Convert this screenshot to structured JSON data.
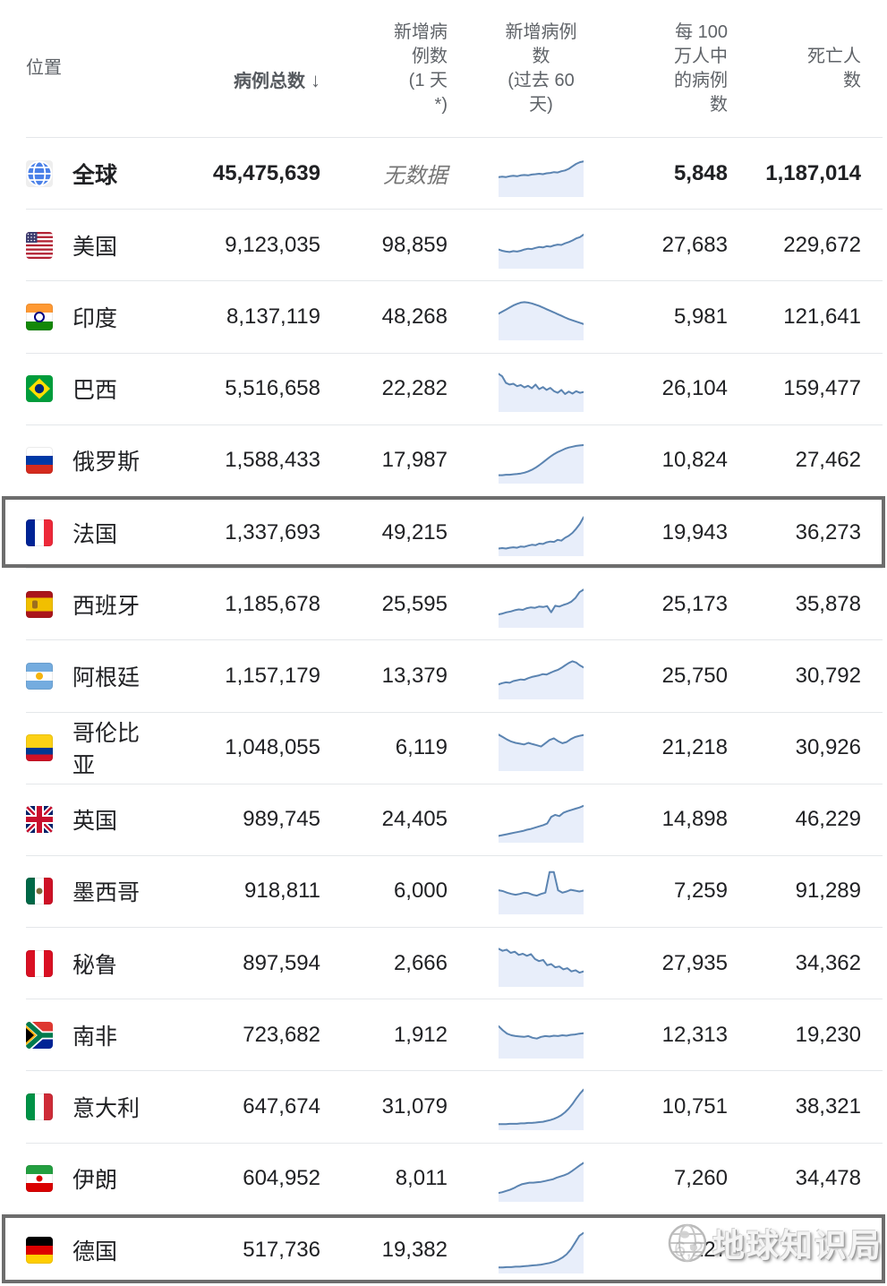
{
  "header": {
    "location": "位置",
    "total_cases": "病例总数",
    "sort_arrow": "↓",
    "new_cases_lines": [
      "新增病",
      "例数",
      "(1 天",
      "*)"
    ],
    "new_cases_60d_lines": [
      "新增病例数",
      "(过去 60",
      "天)"
    ],
    "per_million_lines": [
      "每 100",
      "万人中",
      "的病例",
      "数"
    ],
    "deaths_lines": [
      "死亡人",
      "数"
    ]
  },
  "colors": {
    "body_text": "#202124",
    "header_text": "#5f6368",
    "muted_text": "#757575",
    "divider": "#e4e7ea",
    "spark_line": "#5b84b1",
    "spark_fill": "#e8eefa",
    "highlight_border": "#6d6d6d",
    "globe_blue": "#4a80e8"
  },
  "watermark": {
    "text": "地球知识局"
  },
  "rows": [
    {
      "name": "全球",
      "flag": {
        "code": "globe",
        "type": "globe"
      },
      "total": "45,475,639",
      "new_cases": "无数据",
      "no_data": true,
      "per_million": "5,848",
      "deaths": "1,187,014",
      "bold": true,
      "highlighted": false,
      "spark": [
        0.42,
        0.43,
        0.42,
        0.44,
        0.45,
        0.44,
        0.46,
        0.47,
        0.46,
        0.48,
        0.49,
        0.5,
        0.49,
        0.51,
        0.52,
        0.54,
        0.53,
        0.56,
        0.58,
        0.62,
        0.68,
        0.74,
        0.78,
        0.8
      ]
    },
    {
      "name": "美国",
      "flag": {
        "code": "us",
        "type": "us",
        "colors": [
          "#b22234",
          "#ffffff",
          "#3c3b6e"
        ]
      },
      "total": "9,123,035",
      "new_cases": "98,859",
      "per_million": "27,683",
      "deaths": "229,672",
      "bold": false,
      "highlighted": false,
      "spark": [
        0.4,
        0.37,
        0.35,
        0.34,
        0.36,
        0.35,
        0.37,
        0.4,
        0.42,
        0.41,
        0.44,
        0.46,
        0.45,
        0.48,
        0.47,
        0.5,
        0.52,
        0.51,
        0.55,
        0.58,
        0.62,
        0.67,
        0.7,
        0.76
      ]
    },
    {
      "name": "印度",
      "flag": {
        "code": "in",
        "type": "h",
        "colors": [
          "#ff9933",
          "#ffffff",
          "#138808"
        ],
        "emblem": {
          "shape": "ring",
          "color": "#000080"
        }
      },
      "total": "8,137,119",
      "new_cases": "48,268",
      "per_million": "5,981",
      "deaths": "121,641",
      "bold": false,
      "highlighted": false,
      "spark": [
        0.58,
        0.63,
        0.68,
        0.73,
        0.78,
        0.82,
        0.85,
        0.86,
        0.85,
        0.83,
        0.8,
        0.77,
        0.73,
        0.69,
        0.65,
        0.61,
        0.57,
        0.53,
        0.49,
        0.45,
        0.42,
        0.39,
        0.36,
        0.33
      ]
    },
    {
      "name": "巴西",
      "flag": {
        "code": "br",
        "type": "br",
        "colors": [
          "#009c3b",
          "#ffdf00",
          "#002776"
        ]
      },
      "total": "5,516,658",
      "new_cases": "22,282",
      "per_million": "26,104",
      "deaths": "159,477",
      "bold": false,
      "highlighted": false,
      "spark": [
        0.86,
        0.8,
        0.64,
        0.6,
        0.62,
        0.56,
        0.59,
        0.53,
        0.57,
        0.51,
        0.6,
        0.49,
        0.54,
        0.47,
        0.52,
        0.44,
        0.4,
        0.47,
        0.37,
        0.43,
        0.38,
        0.44,
        0.4,
        0.42
      ]
    },
    {
      "name": "俄罗斯",
      "flag": {
        "code": "ru",
        "type": "h",
        "colors": [
          "#ffffff",
          "#0039a6",
          "#d52b1e"
        ]
      },
      "total": "1,588,433",
      "new_cases": "17,987",
      "per_million": "10,824",
      "deaths": "27,462",
      "bold": false,
      "highlighted": false,
      "spark": [
        0.14,
        0.14,
        0.15,
        0.15,
        0.16,
        0.17,
        0.18,
        0.2,
        0.23,
        0.27,
        0.32,
        0.38,
        0.45,
        0.52,
        0.59,
        0.65,
        0.7,
        0.74,
        0.78,
        0.81,
        0.83,
        0.85,
        0.86,
        0.87
      ]
    },
    {
      "name": "法国",
      "flag": {
        "code": "fr",
        "type": "v",
        "colors": [
          "#002395",
          "#ffffff",
          "#ed2939"
        ]
      },
      "total": "1,337,693",
      "new_cases": "49,215",
      "per_million": "19,943",
      "deaths": "36,273",
      "bold": false,
      "highlighted": true,
      "spark": [
        0.12,
        0.13,
        0.12,
        0.14,
        0.15,
        0.14,
        0.17,
        0.16,
        0.19,
        0.21,
        0.2,
        0.24,
        0.23,
        0.27,
        0.29,
        0.28,
        0.33,
        0.31,
        0.38,
        0.43,
        0.5,
        0.6,
        0.72,
        0.88
      ]
    },
    {
      "name": "西班牙",
      "flag": {
        "code": "es",
        "type": "h",
        "colors": [
          "#aa151b",
          "#f1bf00",
          "#aa151b"
        ],
        "fracs": [
          25,
          50,
          25
        ],
        "emblem": {
          "shape": "crest",
          "color": "#9c6d1e"
        }
      },
      "total": "1,185,678",
      "new_cases": "25,595",
      "per_million": "25,173",
      "deaths": "35,878",
      "bold": false,
      "highlighted": false,
      "spark": [
        0.26,
        0.28,
        0.31,
        0.33,
        0.36,
        0.38,
        0.37,
        0.41,
        0.43,
        0.42,
        0.45,
        0.44,
        0.46,
        0.31,
        0.47,
        0.45,
        0.49,
        0.52,
        0.57,
        0.66,
        0.8,
        0.86
      ]
    },
    {
      "name": "阿根廷",
      "flag": {
        "code": "ar",
        "type": "h",
        "colors": [
          "#74acdf",
          "#ffffff",
          "#74acdf"
        ],
        "emblem": {
          "shape": "sun",
          "color": "#f6b40e"
        }
      },
      "total": "1,157,179",
      "new_cases": "13,379",
      "per_million": "25,750",
      "deaths": "30,792",
      "bold": false,
      "highlighted": false,
      "spark": [
        0.3,
        0.33,
        0.35,
        0.34,
        0.38,
        0.4,
        0.42,
        0.41,
        0.45,
        0.48,
        0.5,
        0.52,
        0.55,
        0.54,
        0.58,
        0.62,
        0.65,
        0.7,
        0.76,
        0.82,
        0.86,
        0.83,
        0.76,
        0.71
      ]
    },
    {
      "name": "哥伦比亚",
      "flag": {
        "code": "co",
        "type": "h",
        "colors": [
          "#fcd116",
          "#003893",
          "#ce1126"
        ],
        "fracs": [
          50,
          25,
          25
        ]
      },
      "total": "1,048,055",
      "new_cases": "6,119",
      "per_million": "21,218",
      "deaths": "30,926",
      "bold": false,
      "highlighted": false,
      "spark": [
        0.82,
        0.76,
        0.7,
        0.65,
        0.62,
        0.6,
        0.58,
        0.62,
        0.59,
        0.56,
        0.53,
        0.61,
        0.69,
        0.73,
        0.66,
        0.61,
        0.64,
        0.71,
        0.76,
        0.79,
        0.81
      ]
    },
    {
      "name": "英国",
      "flag": {
        "code": "gb",
        "type": "gb",
        "colors": [
          "#012169",
          "#ffffff",
          "#c8102e"
        ]
      },
      "total": "989,745",
      "new_cases": "24,405",
      "per_million": "14,898",
      "deaths": "46,229",
      "bold": false,
      "highlighted": false,
      "spark": [
        0.1,
        0.12,
        0.14,
        0.16,
        0.18,
        0.2,
        0.22,
        0.25,
        0.27,
        0.3,
        0.33,
        0.36,
        0.4,
        0.56,
        0.61,
        0.58,
        0.66,
        0.7,
        0.73,
        0.76,
        0.79,
        0.83
      ]
    },
    {
      "name": "墨西哥",
      "flag": {
        "code": "mx",
        "type": "v",
        "colors": [
          "#006847",
          "#ffffff",
          "#ce1126"
        ],
        "emblem": {
          "shape": "dot",
          "color": "#7a6a3a"
        }
      },
      "total": "918,811",
      "new_cases": "6,000",
      "per_million": "7,259",
      "deaths": "91,289",
      "bold": false,
      "highlighted": false,
      "spark": [
        0.52,
        0.5,
        0.46,
        0.43,
        0.41,
        0.43,
        0.46,
        0.45,
        0.41,
        0.39,
        0.43,
        0.46,
        0.96,
        0.96,
        0.52,
        0.46,
        0.49,
        0.53,
        0.51,
        0.49,
        0.51
      ]
    },
    {
      "name": "秘鲁",
      "flag": {
        "code": "pe",
        "type": "v",
        "colors": [
          "#d91023",
          "#ffffff",
          "#d91023"
        ]
      },
      "total": "897,594",
      "new_cases": "2,666",
      "per_million": "27,935",
      "deaths": "34,362",
      "bold": false,
      "highlighted": false,
      "spark": [
        0.86,
        0.81,
        0.84,
        0.76,
        0.79,
        0.71,
        0.74,
        0.69,
        0.73,
        0.61,
        0.56,
        0.59,
        0.46,
        0.49,
        0.41,
        0.43,
        0.36,
        0.39,
        0.31,
        0.34,
        0.28,
        0.31
      ]
    },
    {
      "name": "南非",
      "flag": {
        "code": "za",
        "type": "za",
        "colors": [
          "#de3831",
          "#002395",
          "#007a4d",
          "#ffb612",
          "#000000",
          "#ffffff"
        ]
      },
      "total": "723,682",
      "new_cases": "1,912",
      "per_million": "12,313",
      "deaths": "19,230",
      "bold": false,
      "highlighted": false,
      "spark": [
        0.72,
        0.62,
        0.54,
        0.5,
        0.48,
        0.47,
        0.46,
        0.48,
        0.44,
        0.42,
        0.46,
        0.48,
        0.47,
        0.49,
        0.48,
        0.5,
        0.49,
        0.51,
        0.52,
        0.54,
        0.55
      ]
    },
    {
      "name": "意大利",
      "flag": {
        "code": "it",
        "type": "v",
        "colors": [
          "#009246",
          "#ffffff",
          "#ce2b37"
        ]
      },
      "total": "647,674",
      "new_cases": "31,079",
      "per_million": "10,751",
      "deaths": "38,321",
      "bold": false,
      "highlighted": false,
      "spark": [
        0.08,
        0.08,
        0.08,
        0.09,
        0.09,
        0.09,
        0.1,
        0.1,
        0.11,
        0.11,
        0.12,
        0.13,
        0.14,
        0.16,
        0.18,
        0.21,
        0.25,
        0.3,
        0.37,
        0.46,
        0.57,
        0.7,
        0.82,
        0.92
      ]
    },
    {
      "name": "伊朗",
      "flag": {
        "code": "ir",
        "type": "h",
        "colors": [
          "#239f40",
          "#ffffff",
          "#da0000"
        ],
        "emblem": {
          "shape": "dot",
          "color": "#da0000"
        }
      },
      "total": "604,952",
      "new_cases": "8,011",
      "per_million": "7,260",
      "deaths": "34,478",
      "bold": false,
      "highlighted": false,
      "spark": [
        0.15,
        0.17,
        0.2,
        0.23,
        0.27,
        0.32,
        0.36,
        0.38,
        0.4,
        0.4,
        0.41,
        0.42,
        0.44,
        0.46,
        0.48,
        0.52,
        0.55,
        0.58,
        0.62,
        0.68,
        0.75,
        0.82,
        0.88
      ]
    },
    {
      "name": "德国",
      "flag": {
        "code": "de",
        "type": "h",
        "colors": [
          "#000000",
          "#dd0000",
          "#ffce00"
        ]
      },
      "total": "517,736",
      "new_cases": "19,382",
      "per_million": "6,227",
      "deaths": "",
      "bold": false,
      "highlighted": true,
      "spark": [
        0.08,
        0.08,
        0.09,
        0.09,
        0.1,
        0.1,
        0.11,
        0.12,
        0.13,
        0.14,
        0.15,
        0.17,
        0.19,
        0.22,
        0.26,
        0.32,
        0.4,
        0.52,
        0.68,
        0.85,
        0.92
      ]
    }
  ]
}
